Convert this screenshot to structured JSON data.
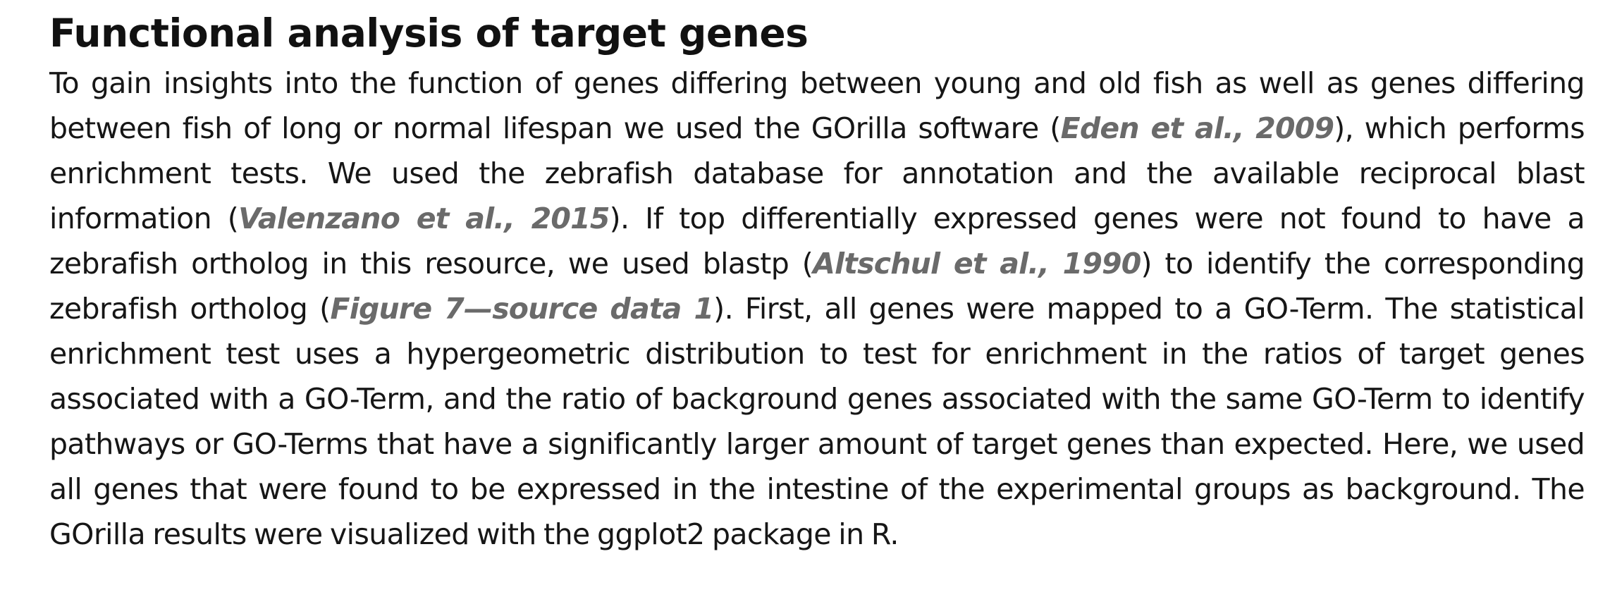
{
  "section": {
    "heading": "Functional analysis of target genes",
    "paragraph": {
      "t1": "To gain insights into the function of genes differing between young and old fish as well as genes differing between fish of long or normal lifespan we used the GOrilla software (",
      "ref1": "Eden et al., 2009",
      "t2": "), which performs enrichment tests. We used the zebrafish database for annotation and the available reciprocal blast information (",
      "ref2": "Valenzano et al., 2015",
      "t3": "). If top differentially expressed genes were not found to have a zebrafish ortholog in this resource, we used blastp (",
      "ref3": "Altschul et al., 1990",
      "t4": ") to identify the corresponding zebrafish ortholog (",
      "ref4": "Figure 7—source data 1",
      "t5": "). First, all genes were mapped to a GO-Term. The statistical enrichment test uses a hypergeometric distribution to test for enrichment in the ratios of target genes associated with a GO-Term, and the ratio of background genes associated with the same GO-Term to identify pathways or GO-Terms that have a significantly larger amount of target genes than expected. Here, we used all genes that were found to be expressed in the intestine of the experimental groups as background. The GOrilla results were visualized with the ggplot2 package in R."
    }
  }
}
